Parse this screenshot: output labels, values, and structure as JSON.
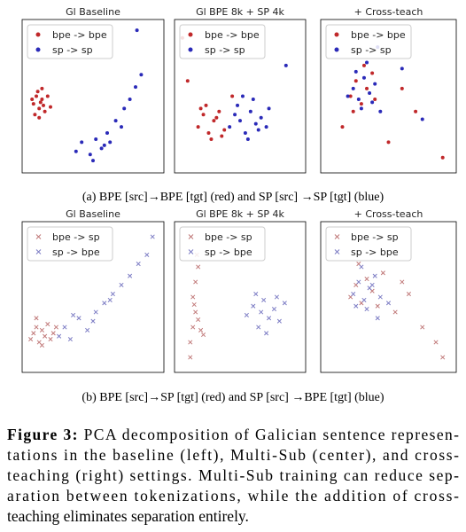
{
  "chart_data": [
    {
      "type": "scatter",
      "title": "Gl Baseline",
      "marker": "dot",
      "xlim": [
        0,
        100
      ],
      "ylim": [
        0,
        100
      ],
      "legend": "upper left",
      "series": [
        {
          "name": "bpe -> bpe",
          "color": "#c0282a",
          "x": [
            8,
            10,
            12,
            14,
            16,
            9,
            11,
            13,
            15,
            18,
            12,
            7,
            20,
            14
          ],
          "y": [
            45,
            50,
            42,
            48,
            40,
            38,
            53,
            46,
            44,
            50,
            36,
            48,
            43,
            55
          ]
        },
        {
          "name": "sp -> sp",
          "color": "#2a2ab8",
          "x": [
            38,
            42,
            48,
            52,
            56,
            60,
            62,
            66,
            70,
            72,
            76,
            80,
            84,
            50,
            58,
            81
          ],
          "y": [
            14,
            20,
            12,
            22,
            16,
            26,
            20,
            34,
            30,
            42,
            48,
            56,
            64,
            8,
            18,
            93
          ]
        }
      ]
    },
    {
      "type": "scatter",
      "title": "Gl BPE 8k + SP 4k",
      "marker": "dot",
      "xlim": [
        0,
        100
      ],
      "ylim": [
        0,
        100
      ],
      "legend": "upper left",
      "series": [
        {
          "name": "bpe -> bpe",
          "color": "#c0282a",
          "x": [
            18,
            22,
            26,
            30,
            34,
            38,
            24,
            28,
            32,
            20,
            36,
            6,
            10,
            44
          ],
          "y": [
            30,
            38,
            26,
            34,
            40,
            28,
            44,
            22,
            36,
            42,
            24,
            88,
            60,
            50
          ]
        },
        {
          "name": "sp -> sp",
          "color": "#2a2ab8",
          "x": [
            42,
            46,
            50,
            54,
            58,
            62,
            66,
            70,
            48,
            56,
            64,
            72,
            52,
            60,
            85
          ],
          "y": [
            30,
            38,
            34,
            26,
            40,
            32,
            36,
            30,
            44,
            22,
            28,
            42,
            50,
            48,
            70
          ]
        }
      ]
    },
    {
      "type": "scatter",
      "title": "+ Cross-teach",
      "marker": "dot",
      "xlim": [
        0,
        100
      ],
      "ylim": [
        0,
        100
      ],
      "legend": "upper left",
      "series": [
        {
          "name": "bpe -> bpe",
          "color": "#c0282a",
          "x": [
            22,
            26,
            30,
            34,
            38,
            24,
            32,
            40,
            16,
            50,
            70,
            90,
            12,
            60
          ],
          "y": [
            50,
            60,
            45,
            55,
            65,
            40,
            70,
            48,
            30,
            20,
            40,
            10,
            80,
            55
          ]
        },
        {
          "name": "sp -> sp",
          "color": "#2a2ab8",
          "x": [
            24,
            28,
            32,
            36,
            40,
            26,
            30,
            38,
            34,
            44,
            20,
            60,
            75,
            42
          ],
          "y": [
            55,
            48,
            62,
            52,
            58,
            66,
            42,
            46,
            72,
            40,
            50,
            68,
            35,
            82
          ]
        }
      ]
    },
    {
      "type": "scatter",
      "title": "Gl Baseline",
      "marker": "x",
      "xlim": [
        0,
        100
      ],
      "ylim": [
        0,
        100
      ],
      "legend": "upper left",
      "series": [
        {
          "name": "bpe -> sp",
          "color": "#c07878",
          "x": [
            6,
            8,
            10,
            12,
            14,
            16,
            18,
            20,
            22,
            10,
            14,
            24
          ],
          "y": [
            22,
            26,
            30,
            20,
            28,
            24,
            32,
            22,
            26,
            36,
            18,
            30
          ]
        },
        {
          "name": "sp -> bpe",
          "color": "#7c7cc4",
          "x": [
            26,
            30,
            34,
            40,
            46,
            52,
            58,
            64,
            70,
            76,
            82,
            88,
            36,
            50,
            62,
            92
          ],
          "y": [
            24,
            30,
            22,
            36,
            28,
            40,
            46,
            52,
            58,
            64,
            72,
            78,
            38,
            34,
            48,
            90
          ]
        }
      ]
    },
    {
      "type": "scatter",
      "title": "Gl BPE 8k + SP 4k",
      "marker": "x",
      "xlim": [
        0,
        100
      ],
      "ylim": [
        0,
        100
      ],
      "legend": "upper left",
      "series": [
        {
          "name": "bpe -> sp",
          "color": "#c07878",
          "x": [
            12,
            14,
            16,
            18,
            20,
            14,
            16,
            18,
            22,
            12,
            15,
            17
          ],
          "y": [
            20,
            30,
            40,
            35,
            28,
            50,
            60,
            70,
            25,
            10,
            45,
            78
          ]
        },
        {
          "name": "sp -> bpe",
          "color": "#7c7cc4",
          "x": [
            55,
            60,
            64,
            68,
            72,
            76,
            80,
            84,
            62,
            70,
            78,
            66
          ],
          "y": [
            38,
            44,
            30,
            48,
            36,
            42,
            34,
            46,
            52,
            26,
            50,
            40
          ]
        }
      ]
    },
    {
      "type": "scatter",
      "title": "+ Cross-teach",
      "marker": "x",
      "xlim": [
        0,
        100
      ],
      "ylim": [
        0,
        100
      ],
      "legend": "upper left",
      "series": [
        {
          "name": "bpe -> sp",
          "color": "#c07878",
          "x": [
            22,
            26,
            30,
            34,
            38,
            42,
            46,
            55,
            65,
            75,
            85,
            90,
            28,
            60
          ],
          "y": [
            50,
            58,
            46,
            62,
            54,
            44,
            66,
            40,
            52,
            30,
            20,
            10,
            72,
            60
          ]
        },
        {
          "name": "sp -> bpe",
          "color": "#7c7cc4",
          "x": [
            24,
            28,
            32,
            36,
            40,
            44,
            30,
            34,
            38,
            50,
            26,
            42
          ],
          "y": [
            52,
            60,
            48,
            56,
            64,
            50,
            70,
            42,
            58,
            46,
            44,
            36
          ]
        }
      ]
    }
  ],
  "captions": [
    "(a) BPE [src]→BPE [tgt] (red) and SP [src] →SP [tgt] (blue)",
    "(b) BPE [src]→SP [tgt] (red) and SP [src] →BPE [tgt] (blue)"
  ],
  "figure_caption": {
    "label": "Figure 3:",
    "lines": [
      "PCA decomposition of Galician sentence represen-",
      "tations in the baseline (left), Multi-Sub (center), and cross-",
      "teaching (right) settings. Multi-Sub training can reduce sep-",
      "aration between tokenizations, while the addition of cross-",
      "teaching eliminates separation entirely."
    ]
  }
}
